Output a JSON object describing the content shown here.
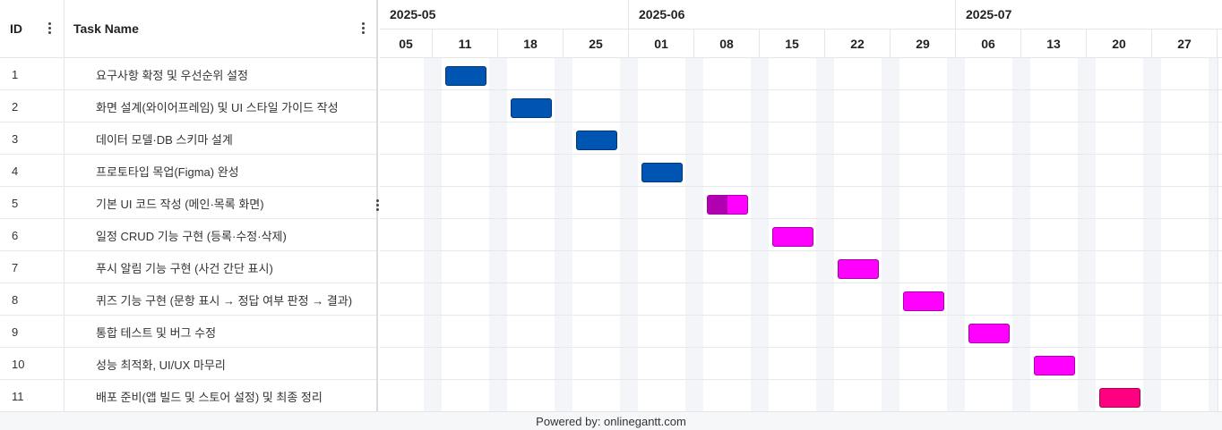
{
  "grid": {
    "columns": {
      "id": "ID",
      "name": "Task Name"
    },
    "menu_icon": "vertical-ellipsis-icon"
  },
  "timeline": {
    "months": [
      "2025-05",
      "2025-06",
      "2025-07"
    ],
    "weeks": [
      "05",
      "11",
      "18",
      "25",
      "01",
      "08",
      "15",
      "22",
      "29",
      "06",
      "13",
      "20",
      "27"
    ]
  },
  "tasks": [
    {
      "id": "1",
      "name": "요구사항 확정 및 우선순위 설정",
      "week_index": 1,
      "progress": 0,
      "color": "#0055b3"
    },
    {
      "id": "2",
      "name": "화면 설계(와이어프레임) 및 UI 스타일 가이드 작성",
      "week_index": 2,
      "progress": 0,
      "color": "#0055b3"
    },
    {
      "id": "3",
      "name": "데이터 모델·DB 스키마 설계",
      "week_index": 3,
      "progress": 0,
      "color": "#0055b3"
    },
    {
      "id": "4",
      "name": "프로토타입 목업(Figma) 완성",
      "week_index": 4,
      "progress": 0,
      "color": "#0055b3"
    },
    {
      "id": "5",
      "name": "기본 UI 코드 작성 (메인·목록 화면)",
      "week_index": 5,
      "progress": 0.5,
      "color": "#ff00ff",
      "progress_color": "#b000b0"
    },
    {
      "id": "6",
      "name": "일정 CRUD 기능 구현 (등록·수정·삭제)",
      "week_index": 6,
      "progress": 0,
      "color": "#ff00ff"
    },
    {
      "id": "7",
      "name": "푸시 알림 기능 구현 (사건 간단 표시)",
      "week_index": 7,
      "progress": 0,
      "color": "#ff00ff"
    },
    {
      "id": "8",
      "name": "퀴즈 기능 구현 (문항 표시 → 정답 여부 판정 → 결과)",
      "week_index": 8,
      "progress": 0,
      "color": "#ff00ff"
    },
    {
      "id": "9",
      "name": "통합 테스트 및 버그 수정",
      "week_index": 9,
      "progress": 0,
      "color": "#ff00ff"
    },
    {
      "id": "10",
      "name": "성능 최적화, UI/UX 마무리",
      "week_index": 10,
      "progress": 0,
      "color": "#ff00ff"
    },
    {
      "id": "11",
      "name": "배포 준비(앱 빌드 및 스토어 설정) 및 최종 정리",
      "week_index": 11,
      "progress": 0,
      "color": "#ff0080"
    }
  ],
  "footer": {
    "text": "Powered by: onlinegantt.com"
  }
}
